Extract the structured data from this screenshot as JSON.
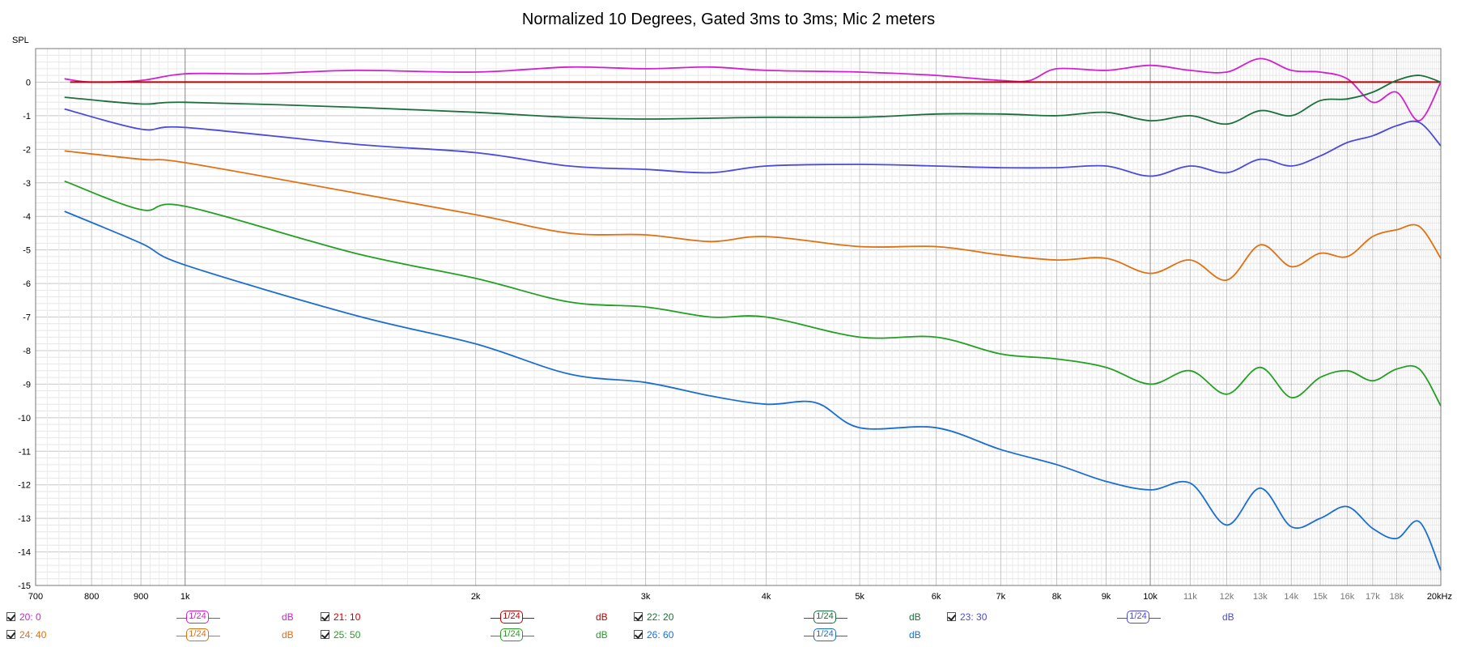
{
  "chart_data": {
    "type": "line",
    "title": "Normalized 10 Degrees, Gated 3ms to 3ms; Mic 2 meters",
    "ylabel": "SPL",
    "xscale": "log",
    "xlim": [
      700,
      20000
    ],
    "ylim": [
      -15,
      1
    ],
    "grid": true,
    "y_ticks": [
      "0",
      "-1",
      "-2",
      "-3",
      "-4",
      "-5",
      "-6",
      "-7",
      "-8",
      "-9",
      "-10",
      "-11",
      "-12",
      "-13",
      "-14",
      "-15"
    ],
    "x_ticks": [
      {
        "v": 700,
        "label": "700"
      },
      {
        "v": 800,
        "label": "800"
      },
      {
        "v": 900,
        "label": "900"
      },
      {
        "v": 1000,
        "label": "1k"
      },
      {
        "v": 2000,
        "label": "2k"
      },
      {
        "v": 3000,
        "label": "3k"
      },
      {
        "v": 4000,
        "label": "4k"
      },
      {
        "v": 5000,
        "label": "5k"
      },
      {
        "v": 6000,
        "label": "6k"
      },
      {
        "v": 7000,
        "label": "7k"
      },
      {
        "v": 8000,
        "label": "8k"
      },
      {
        "v": 9000,
        "label": "9k"
      },
      {
        "v": 10000,
        "label": "10k"
      },
      {
        "v": 11000,
        "label": "11k"
      },
      {
        "v": 12000,
        "label": "12k"
      },
      {
        "v": 13000,
        "label": "13k"
      },
      {
        "v": 14000,
        "label": "14k"
      },
      {
        "v": 15000,
        "label": "15k"
      },
      {
        "v": 16000,
        "label": "16k"
      },
      {
        "v": 17000,
        "label": "17k"
      },
      {
        "v": 18000,
        "label": "18k"
      },
      {
        "v": 20000,
        "label": "20kHz"
      }
    ],
    "series": [
      {
        "name": "20: 0",
        "color": "#d020d0",
        "points": [
          [
            750,
            0.1
          ],
          [
            800,
            0.0
          ],
          [
            900,
            0.05
          ],
          [
            1000,
            0.25
          ],
          [
            1200,
            0.25
          ],
          [
            1500,
            0.35
          ],
          [
            2000,
            0.3
          ],
          [
            2500,
            0.45
          ],
          [
            3000,
            0.4
          ],
          [
            3500,
            0.45
          ],
          [
            4000,
            0.35
          ],
          [
            5000,
            0.3
          ],
          [
            6000,
            0.2
          ],
          [
            7000,
            0.05
          ],
          [
            7500,
            0.05
          ],
          [
            8000,
            0.4
          ],
          [
            9000,
            0.35
          ],
          [
            10000,
            0.5
          ],
          [
            11000,
            0.35
          ],
          [
            12000,
            0.3
          ],
          [
            13000,
            0.7
          ],
          [
            14000,
            0.35
          ],
          [
            15000,
            0.3
          ],
          [
            16000,
            0.1
          ],
          [
            17000,
            -0.6
          ],
          [
            18000,
            -0.3
          ],
          [
            19000,
            -1.15
          ],
          [
            20000,
            0.0
          ]
        ]
      },
      {
        "name": "21: 10",
        "color": "#c00000",
        "points": [
          [
            760,
            0.0
          ],
          [
            20000,
            0.0
          ]
        ]
      },
      {
        "name": "22: 20",
        "color": "#1a6f3a",
        "points": [
          [
            750,
            -0.45
          ],
          [
            900,
            -0.65
          ],
          [
            1000,
            -0.6
          ],
          [
            1500,
            -0.75
          ],
          [
            2000,
            -0.9
          ],
          [
            2500,
            -1.05
          ],
          [
            3000,
            -1.1
          ],
          [
            4000,
            -1.05
          ],
          [
            5000,
            -1.05
          ],
          [
            6000,
            -0.95
          ],
          [
            7000,
            -0.95
          ],
          [
            8000,
            -1.0
          ],
          [
            9000,
            -0.9
          ],
          [
            10000,
            -1.15
          ],
          [
            11000,
            -1.0
          ],
          [
            12000,
            -1.25
          ],
          [
            13000,
            -0.85
          ],
          [
            14000,
            -1.0
          ],
          [
            15000,
            -0.55
          ],
          [
            16000,
            -0.5
          ],
          [
            17000,
            -0.3
          ],
          [
            18000,
            0.05
          ],
          [
            19000,
            0.2
          ],
          [
            20000,
            0.0
          ]
        ]
      },
      {
        "name": "23: 30",
        "color": "#4a4adc",
        "points": [
          [
            750,
            -0.8
          ],
          [
            900,
            -1.4
          ],
          [
            1000,
            -1.35
          ],
          [
            1500,
            -1.85
          ],
          [
            2000,
            -2.1
          ],
          [
            2500,
            -2.5
          ],
          [
            3000,
            -2.6
          ],
          [
            3500,
            -2.7
          ],
          [
            4000,
            -2.5
          ],
          [
            5000,
            -2.45
          ],
          [
            6000,
            -2.5
          ],
          [
            7000,
            -2.55
          ],
          [
            8000,
            -2.55
          ],
          [
            9000,
            -2.5
          ],
          [
            10000,
            -2.8
          ],
          [
            11000,
            -2.5
          ],
          [
            12000,
            -2.7
          ],
          [
            13000,
            -2.3
          ],
          [
            14000,
            -2.5
          ],
          [
            15000,
            -2.2
          ],
          [
            16000,
            -1.8
          ],
          [
            17000,
            -1.6
          ],
          [
            18000,
            -1.3
          ],
          [
            19000,
            -1.2
          ],
          [
            20000,
            -1.9
          ]
        ]
      },
      {
        "name": "24: 40",
        "color": "#e07010",
        "points": [
          [
            750,
            -2.05
          ],
          [
            900,
            -2.3
          ],
          [
            1000,
            -2.4
          ],
          [
            1500,
            -3.3
          ],
          [
            2000,
            -3.95
          ],
          [
            2500,
            -4.5
          ],
          [
            3000,
            -4.55
          ],
          [
            3500,
            -4.75
          ],
          [
            4000,
            -4.6
          ],
          [
            5000,
            -4.9
          ],
          [
            6000,
            -4.9
          ],
          [
            7000,
            -5.15
          ],
          [
            8000,
            -5.3
          ],
          [
            9000,
            -5.25
          ],
          [
            10000,
            -5.7
          ],
          [
            11000,
            -5.3
          ],
          [
            12000,
            -5.9
          ],
          [
            13000,
            -4.85
          ],
          [
            14000,
            -5.5
          ],
          [
            15000,
            -5.1
          ],
          [
            16000,
            -5.2
          ],
          [
            17000,
            -4.6
          ],
          [
            18000,
            -4.4
          ],
          [
            19000,
            -4.3
          ],
          [
            20000,
            -5.25
          ]
        ]
      },
      {
        "name": "25: 50",
        "color": "#22a022",
        "points": [
          [
            750,
            -2.95
          ],
          [
            900,
            -3.8
          ],
          [
            1000,
            -3.7
          ],
          [
            1500,
            -5.1
          ],
          [
            2000,
            -5.85
          ],
          [
            2500,
            -6.55
          ],
          [
            3000,
            -6.7
          ],
          [
            3500,
            -7.0
          ],
          [
            4000,
            -7.0
          ],
          [
            5000,
            -7.6
          ],
          [
            6000,
            -7.6
          ],
          [
            7000,
            -8.1
          ],
          [
            8000,
            -8.25
          ],
          [
            9000,
            -8.5
          ],
          [
            10000,
            -9.0
          ],
          [
            11000,
            -8.6
          ],
          [
            12000,
            -9.3
          ],
          [
            13000,
            -8.5
          ],
          [
            14000,
            -9.4
          ],
          [
            15000,
            -8.8
          ],
          [
            16000,
            -8.6
          ],
          [
            17000,
            -8.9
          ],
          [
            18000,
            -8.55
          ],
          [
            19000,
            -8.55
          ],
          [
            20000,
            -9.65
          ]
        ]
      },
      {
        "name": "26: 60",
        "color": "#1a6ed0",
        "points": [
          [
            750,
            -3.85
          ],
          [
            900,
            -4.8
          ],
          [
            1000,
            -5.45
          ],
          [
            1500,
            -6.95
          ],
          [
            2000,
            -7.8
          ],
          [
            2500,
            -8.7
          ],
          [
            3000,
            -8.95
          ],
          [
            3500,
            -9.35
          ],
          [
            4000,
            -9.6
          ],
          [
            4500,
            -9.55
          ],
          [
            5000,
            -10.3
          ],
          [
            6000,
            -10.3
          ],
          [
            7000,
            -10.95
          ],
          [
            8000,
            -11.4
          ],
          [
            9000,
            -11.9
          ],
          [
            10000,
            -12.15
          ],
          [
            11000,
            -11.95
          ],
          [
            12000,
            -13.2
          ],
          [
            13000,
            -12.1
          ],
          [
            14000,
            -13.25
          ],
          [
            15000,
            -13.0
          ],
          [
            16000,
            -12.65
          ],
          [
            17000,
            -13.3
          ],
          [
            18000,
            -13.6
          ],
          [
            19000,
            -13.1
          ],
          [
            20000,
            -14.55
          ]
        ]
      }
    ]
  },
  "legend": {
    "smoothing_label": "1/24",
    "unit_label": "dB"
  }
}
